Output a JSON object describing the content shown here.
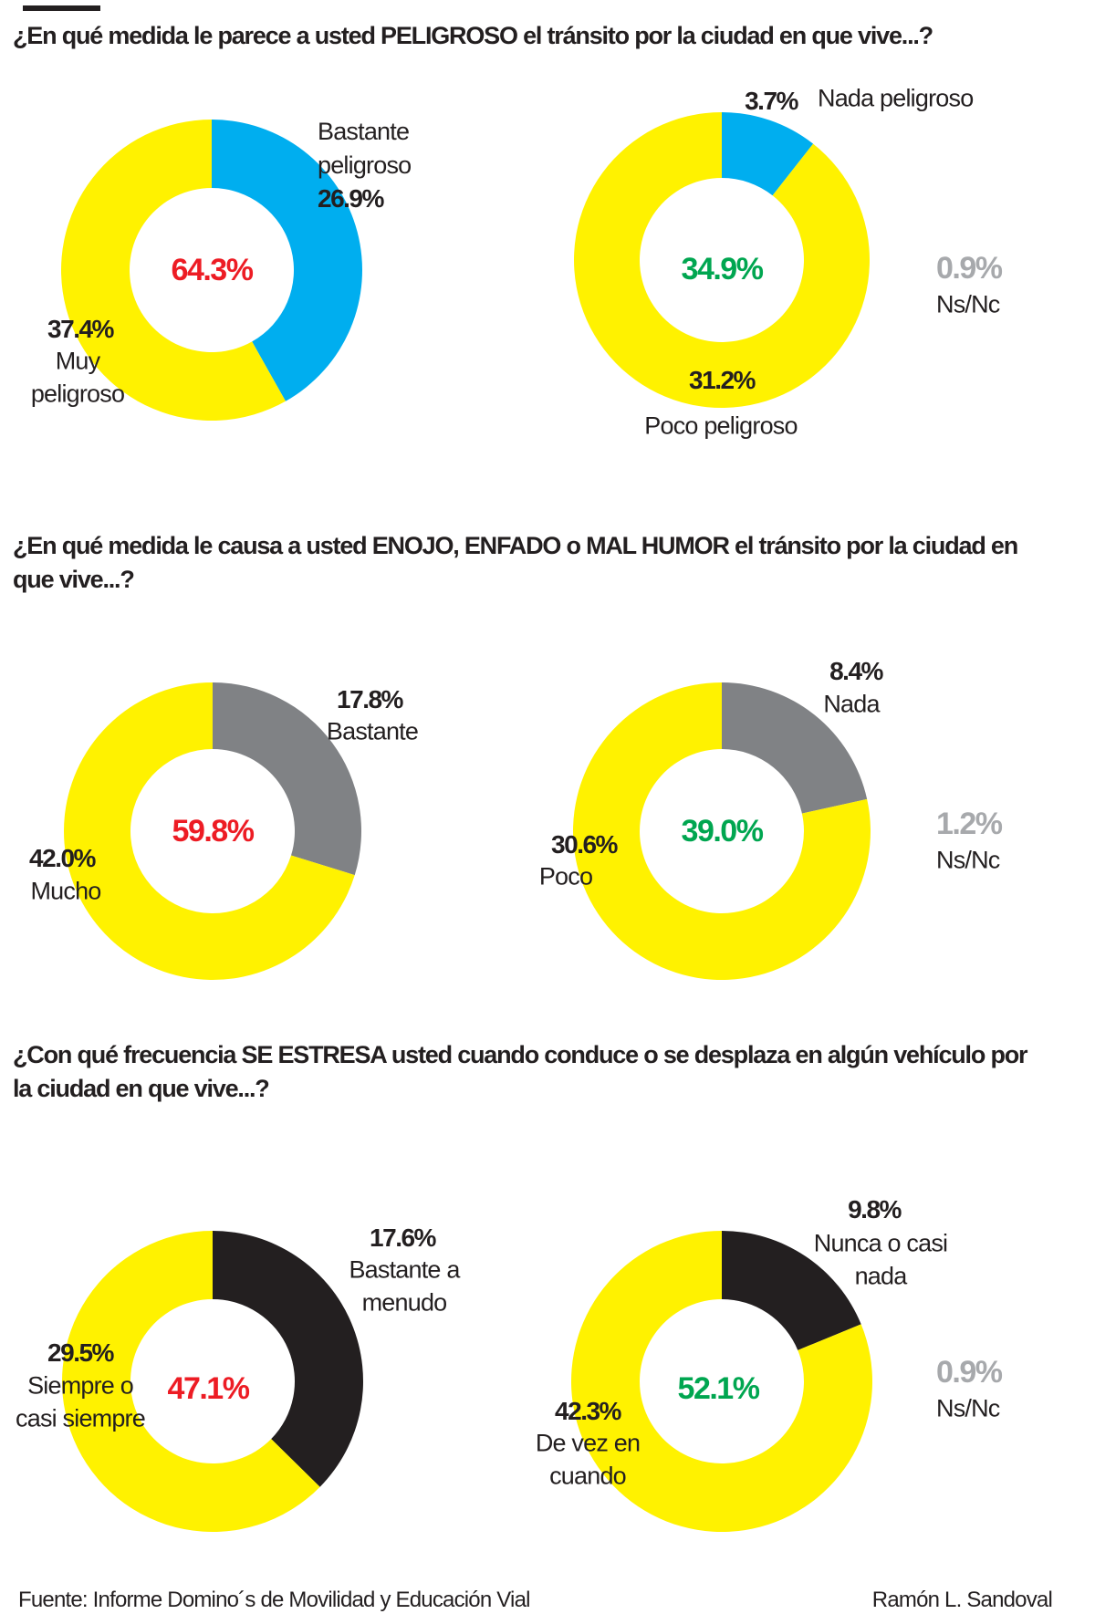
{
  "questions": [
    "¿En qué medida le parece a usted PELIGROSO el tránsito por la ciudad en que vive...?",
    "¿En qué medida le causa a usted ENOJO, ENFADO o MAL HUMOR el tránsito por la ciudad en que vive...?",
    "¿Con qué frecuencia SE ESTRESA usted cuando conduce o se desplaza en algún vehículo por la ciudad en que vive...?"
  ],
  "colors": {
    "yellow": "#fff200",
    "blue": "#00aeef",
    "gray": "#808285",
    "black": "#231f20",
    "red": "#ed1c24",
    "green": "#00a650",
    "light_gray": "#a7a9ac"
  },
  "chart_data": [
    {
      "type": "pie",
      "variant": "donut",
      "categories": [
        "Bastante peligroso",
        "Muy peligroso"
      ],
      "values": [
        26.9,
        37.4
      ],
      "colors": [
        "#00aeef",
        "#fff200"
      ],
      "center_label": "64.3%",
      "labels": {
        "a_pct": "26.9%",
        "a_name_1": "Bastante",
        "a_name_2": "peligroso",
        "b_pct": "37.4%",
        "b_name_1": "Muy",
        "b_name_2": "peligroso"
      }
    },
    {
      "type": "pie",
      "variant": "donut",
      "categories": [
        "Nada peligroso",
        "Poco peligroso"
      ],
      "values": [
        3.7,
        31.2
      ],
      "colors": [
        "#00aeef",
        "#fff200"
      ],
      "center_label": "34.9%",
      "ns_nc": {
        "value": "0.9%",
        "label": "Ns/Nc"
      },
      "labels": {
        "a_pct": "3.7%",
        "a_name_1": "Nada peligroso",
        "b_pct": "31.2%",
        "b_name_1": "Poco peligroso"
      }
    },
    {
      "type": "pie",
      "variant": "donut",
      "categories": [
        "Bastante",
        "Mucho"
      ],
      "values": [
        17.8,
        42.0
      ],
      "colors": [
        "#808285",
        "#fff200"
      ],
      "center_label": "59.8%",
      "labels": {
        "a_pct": "17.8%",
        "a_name_1": "Bastante",
        "b_pct": "42.0%",
        "b_name_1": "Mucho"
      }
    },
    {
      "type": "pie",
      "variant": "donut",
      "categories": [
        "Nada",
        "Poco"
      ],
      "values": [
        8.4,
        30.6
      ],
      "colors": [
        "#808285",
        "#fff200"
      ],
      "center_label": "39.0%",
      "ns_nc": {
        "value": "1.2%",
        "label": "Ns/Nc"
      },
      "labels": {
        "a_pct": "8.4%",
        "a_name_1": "Nada",
        "b_pct": "30.6%",
        "b_name_1": "Poco"
      }
    },
    {
      "type": "pie",
      "variant": "donut",
      "categories": [
        "Bastante a menudo",
        "Siempre o casi siempre"
      ],
      "values": [
        17.6,
        29.5
      ],
      "colors": [
        "#231f20",
        "#fff200"
      ],
      "center_label": "47.1%",
      "labels": {
        "a_pct": "17.6%",
        "a_name_1": "Bastante a",
        "a_name_2": "menudo",
        "b_pct": "29.5%",
        "b_name_1": "Siempre o",
        "b_name_2": "casi siempre"
      }
    },
    {
      "type": "pie",
      "variant": "donut",
      "categories": [
        "Nunca o casi nada",
        "De vez en cuando"
      ],
      "values": [
        9.8,
        42.3
      ],
      "colors": [
        "#231f20",
        "#fff200"
      ],
      "center_label": "52.1%",
      "ns_nc": {
        "value": "0.9%",
        "label": "Ns/Nc"
      },
      "labels": {
        "a_pct": "9.8%",
        "a_name_1": "Nunca o casi",
        "a_name_2": "nada",
        "b_pct": "42.3%",
        "b_name_1": "De vez en",
        "b_name_2": "cuando"
      }
    }
  ],
  "footer": {
    "source": "Fuente: Informe Domino´s de Movilidad y Educación Vial",
    "author": "Ramón L. Sandoval"
  }
}
